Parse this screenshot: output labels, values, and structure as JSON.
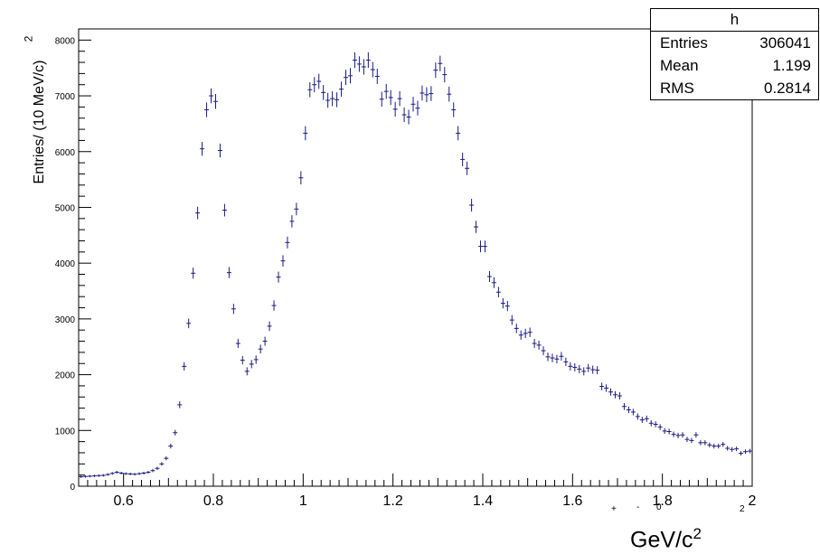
{
  "stats": {
    "title": "h",
    "rows": [
      {
        "label": "Entries",
        "value": "306041"
      },
      {
        "label": "Mean",
        "value": "1.199"
      },
      {
        "label": "RMS",
        "value": "0.2814"
      }
    ]
  },
  "y_title_text": "Entries/  (10 MeV/c",
  "y_title_sup": "2",
  "y_title_close": ")",
  "x_title_text": "GeV/c",
  "x_title_sup": "2",
  "stray_marks": [
    "+",
    "-",
    "0",
    "2"
  ],
  "chart_data": {
    "type": "scatter",
    "style": "histogram-error-bars",
    "xlim": [
      0.5,
      2.0
    ],
    "ylim": [
      0,
      8200
    ],
    "x_ticks": [
      0.6,
      0.8,
      1.0,
      1.2,
      1.4,
      1.6,
      1.8,
      2.0
    ],
    "x_tick_labels": [
      "0.6",
      "0.8",
      "1",
      "1.2",
      "1.4",
      "1.6",
      "1.8",
      "2"
    ],
    "y_ticks": [
      0,
      1000,
      2000,
      3000,
      4000,
      5000,
      6000,
      7000,
      8000
    ],
    "y_tick_labels": [
      "0",
      "1000",
      "2000",
      "3000",
      "4000",
      "5000",
      "6000",
      "7000",
      "8000"
    ],
    "bin_width": 0.01,
    "marker_color": "#1a1a80",
    "x": [
      0.505,
      0.515,
      0.525,
      0.535,
      0.545,
      0.555,
      0.565,
      0.575,
      0.585,
      0.595,
      0.605,
      0.615,
      0.625,
      0.635,
      0.645,
      0.655,
      0.665,
      0.675,
      0.685,
      0.695,
      0.705,
      0.715,
      0.725,
      0.735,
      0.745,
      0.755,
      0.765,
      0.775,
      0.785,
      0.795,
      0.805,
      0.815,
      0.825,
      0.835,
      0.845,
      0.855,
      0.865,
      0.875,
      0.885,
      0.895,
      0.905,
      0.915,
      0.925,
      0.935,
      0.945,
      0.955,
      0.965,
      0.975,
      0.985,
      0.995,
      1.005,
      1.015,
      1.025,
      1.035,
      1.045,
      1.055,
      1.065,
      1.075,
      1.085,
      1.095,
      1.105,
      1.115,
      1.125,
      1.135,
      1.145,
      1.155,
      1.165,
      1.175,
      1.185,
      1.195,
      1.205,
      1.215,
      1.225,
      1.235,
      1.245,
      1.255,
      1.265,
      1.275,
      1.285,
      1.295,
      1.305,
      1.315,
      1.325,
      1.335,
      1.345,
      1.355,
      1.365,
      1.375,
      1.385,
      1.395,
      1.405,
      1.415,
      1.425,
      1.435,
      1.445,
      1.455,
      1.465,
      1.475,
      1.485,
      1.495,
      1.505,
      1.515,
      1.525,
      1.535,
      1.545,
      1.555,
      1.565,
      1.575,
      1.585,
      1.595,
      1.605,
      1.615,
      1.625,
      1.635,
      1.645,
      1.655,
      1.665,
      1.675,
      1.685,
      1.695,
      1.705,
      1.715,
      1.725,
      1.735,
      1.745,
      1.755,
      1.765,
      1.775,
      1.785,
      1.795,
      1.805,
      1.815,
      1.825,
      1.835,
      1.845,
      1.855,
      1.865,
      1.875,
      1.885,
      1.895,
      1.905,
      1.915,
      1.925,
      1.935,
      1.945,
      1.955,
      1.965,
      1.975,
      1.985,
      1.995
    ],
    "values": [
      170,
      175,
      180,
      185,
      190,
      195,
      210,
      230,
      250,
      235,
      225,
      220,
      215,
      225,
      235,
      250,
      280,
      320,
      400,
      500,
      720,
      960,
      1460,
      2150,
      2920,
      3820,
      4900,
      6050,
      6750,
      7000,
      6900,
      6020,
      4950,
      3830,
      3180,
      2560,
      2260,
      2060,
      2190,
      2270,
      2460,
      2600,
      2870,
      3240,
      3750,
      4040,
      4370,
      4750,
      4970,
      5530,
      6330,
      7110,
      7200,
      7260,
      7060,
      6920,
      6950,
      6930,
      7120,
      7330,
      7360,
      7640,
      7570,
      7520,
      7640,
      7470,
      7350,
      6940,
      7080,
      6970,
      6760,
      6950,
      6660,
      6620,
      6850,
      6780,
      7050,
      7020,
      7040,
      7460,
      7580,
      7380,
      7030,
      6750,
      6330,
      5860,
      5700,
      5040,
      4650,
      4300,
      4300,
      3760,
      3650,
      3480,
      3280,
      3230,
      2980,
      2830,
      2710,
      2740,
      2760,
      2560,
      2530,
      2430,
      2320,
      2300,
      2280,
      2330,
      2230,
      2150,
      2130,
      2100,
      2060,
      2120,
      2090,
      2080,
      1790,
      1760,
      1690,
      1640,
      1620,
      1430,
      1370,
      1330,
      1250,
      1190,
      1210,
      1130,
      1110,
      1060,
      990,
      980,
      930,
      910,
      920,
      840,
      820,
      920,
      780,
      780,
      740,
      720,
      720,
      750,
      680,
      660,
      670,
      590,
      620,
      630
    ]
  }
}
